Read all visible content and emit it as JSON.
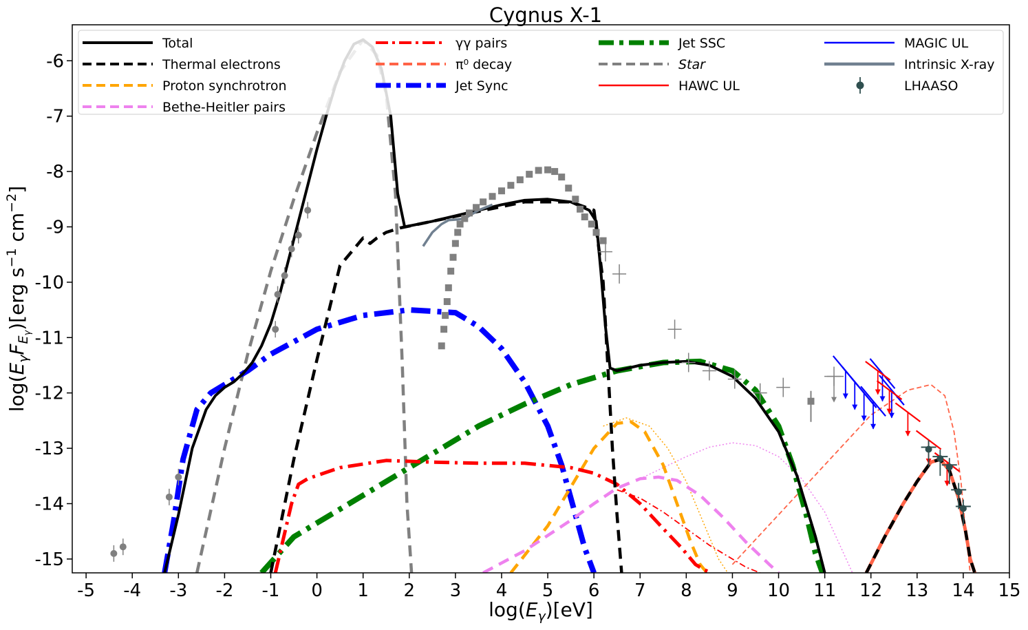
{
  "chart_data": {
    "type": "line",
    "title": "Cygnus X-1",
    "xlabel": "log(E_γ)[eV]",
    "ylabel": "log(E_γ F_E_γ)[erg s^-1 cm^-2]",
    "xlim": [
      -5.3,
      15
    ],
    "ylim": [
      -15.25,
      -5.35
    ],
    "xticks": [
      -5,
      -4,
      -3,
      -2,
      -1,
      0,
      1,
      2,
      3,
      4,
      5,
      6,
      7,
      8,
      9,
      10,
      11,
      12,
      13,
      14,
      15
    ],
    "xtick_labels": [
      "-5",
      "-4",
      "-3",
      "-2",
      "-1",
      "0",
      "1",
      "2",
      "3",
      "4",
      "5",
      "6",
      "7",
      "8",
      "9",
      "10",
      "11",
      "12",
      "13",
      "14",
      "15"
    ],
    "yticks": [
      -15,
      -14,
      -13,
      -12,
      -11,
      -10,
      -9,
      -8,
      -7,
      -6
    ],
    "ytick_labels": [
      "-15",
      "-14",
      "-13",
      "-12",
      "-11",
      "-10",
      "-9",
      "-8",
      "-7",
      "-6"
    ],
    "legend_position": "top",
    "legend": [
      {
        "key": "total",
        "label": "Total",
        "color": "#000000",
        "style": "solid"
      },
      {
        "key": "thermal",
        "label": "Thermal electrons",
        "color": "#000000",
        "style": "dashed"
      },
      {
        "key": "psync",
        "label": "Proton synchrotron",
        "color": "#FFA500",
        "style": "dashed"
      },
      {
        "key": "bh",
        "label": "Bethe-Heitler pairs",
        "color": "#EE82EE",
        "style": "dashed"
      },
      {
        "key": "gg",
        "label": "γγ pairs",
        "color": "#FF0000",
        "style": "dashdot"
      },
      {
        "key": "pi0",
        "label": "π⁰ decay",
        "color": "#FF6347",
        "style": "dashed"
      },
      {
        "key": "jetsync",
        "label": "Jet Sync",
        "color": "#0000FF",
        "style": "dashdotthick"
      },
      {
        "key": "jetssc",
        "label": "Jet SSC",
        "color": "#008000",
        "style": "dashdotthick"
      },
      {
        "key": "star",
        "label": "Star",
        "color": "#808080",
        "style": "dashed",
        "italic": true
      },
      {
        "key": "hawc",
        "label": "HAWC UL",
        "color": "#FF0000",
        "style": "solidthin"
      },
      {
        "key": "magic",
        "label": "MAGIC UL",
        "color": "#0000FF",
        "style": "solidthin"
      },
      {
        "key": "xray",
        "label": "Intrinsic X-ray",
        "color": "#708090",
        "style": "solid"
      },
      {
        "key": "lhaaso",
        "label": "LHAASO",
        "color": "#2F4F4F",
        "style": "marker"
      }
    ],
    "series": [
      {
        "name": "Total",
        "color": "#000000",
        "x": [
          -3.3,
          -3.0,
          -2.7,
          -2.4,
          -2.2,
          -2.0,
          -1.8,
          -1.6,
          -1.4,
          -1.2,
          -1.0,
          -0.8,
          -0.6,
          -0.4,
          -0.2,
          0.0,
          0.2,
          0.4,
          0.6,
          0.8,
          1.0,
          1.2,
          1.4,
          1.6,
          1.75,
          1.9,
          2.5,
          3.0,
          3.5,
          4.0,
          4.5,
          5.0,
          5.5,
          5.9,
          6.05,
          6.15,
          6.25,
          6.35,
          6.5,
          7.0,
          7.5,
          8.0,
          8.5,
          9.0,
          9.5,
          10.0,
          10.4,
          10.8,
          11.0
        ],
        "y": [
          -15.25,
          -14.2,
          -13.0,
          -12.3,
          -12.05,
          -11.9,
          -11.8,
          -11.65,
          -11.45,
          -11.15,
          -10.75,
          -10.2,
          -9.55,
          -8.9,
          -8.25,
          -7.6,
          -7.0,
          -6.45,
          -6.0,
          -5.7,
          -5.62,
          -5.75,
          -6.15,
          -7.0,
          -8.4,
          -9.0,
          -8.9,
          -8.8,
          -8.7,
          -8.6,
          -8.52,
          -8.5,
          -8.55,
          -8.7,
          -8.9,
          -9.8,
          -10.8,
          -11.55,
          -11.6,
          -11.5,
          -11.45,
          -11.43,
          -11.5,
          -11.7,
          -12.1,
          -12.7,
          -13.5,
          -14.6,
          -15.25
        ]
      },
      {
        "name": "Total (high energy)",
        "color": "#000000",
        "x": [
          11.9,
          12.3,
          12.7,
          13.0,
          13.3,
          13.5,
          13.7,
          13.9,
          14.05,
          14.15,
          14.25
        ],
        "y": [
          -15.25,
          -14.6,
          -14.0,
          -13.6,
          -13.25,
          -13.2,
          -13.4,
          -13.9,
          -14.5,
          -15.0,
          -15.25
        ]
      },
      {
        "name": "Thermal electrons",
        "color": "#000000",
        "x": [
          -1.0,
          -0.5,
          0.0,
          0.5,
          1.0,
          1.15,
          1.3,
          1.5,
          1.8,
          2.5,
          3.5,
          4.5,
          5.5,
          6.0,
          6.2,
          6.3,
          6.4,
          6.5,
          6.6
        ],
        "y": [
          -15.25,
          -13.2,
          -11.4,
          -9.7,
          -9.2,
          -9.3,
          -9.2,
          -9.1,
          -9.02,
          -8.9,
          -8.72,
          -8.55,
          -8.55,
          -8.7,
          -10.0,
          -11.5,
          -13.0,
          -14.2,
          -15.25
        ]
      },
      {
        "name": "Star",
        "color": "#808080",
        "x": [
          -2.6,
          -2.0,
          -1.5,
          -1.0,
          -0.5,
          0.0,
          0.5,
          1.0,
          1.3,
          1.5,
          1.7,
          1.85,
          1.95,
          2.05
        ],
        "y": [
          -15.25,
          -13.0,
          -11.3,
          -9.8,
          -8.5,
          -7.3,
          -6.2,
          -5.62,
          -5.9,
          -6.6,
          -8.4,
          -11.5,
          -14.0,
          -15.25
        ]
      },
      {
        "name": "Jet Sync",
        "color": "#0000FF",
        "x": [
          -3.3,
          -3.1,
          -2.9,
          -2.6,
          -2.3,
          -2.0,
          -1.5,
          -1.0,
          0.0,
          1.0,
          2.0,
          3.0,
          3.5,
          4.0,
          4.5,
          5.0,
          5.3,
          5.6,
          5.8,
          6.0
        ],
        "y": [
          -15.25,
          -14.3,
          -13.2,
          -12.3,
          -12.0,
          -11.85,
          -11.6,
          -11.3,
          -10.85,
          -10.6,
          -10.5,
          -10.55,
          -10.8,
          -11.2,
          -11.8,
          -12.6,
          -13.3,
          -14.2,
          -14.8,
          -15.25
        ]
      },
      {
        "name": "Jet SSC",
        "color": "#008000",
        "x": [
          -1.2,
          -0.5,
          0.5,
          1.5,
          2.5,
          3.5,
          4.5,
          5.5,
          6.5,
          7.5,
          8.3,
          9.0,
          9.5,
          10.0,
          10.3,
          10.6,
          10.8,
          10.95
        ],
        "y": [
          -15.25,
          -14.6,
          -14.1,
          -13.6,
          -13.1,
          -12.6,
          -12.2,
          -11.85,
          -11.6,
          -11.45,
          -11.43,
          -11.6,
          -11.95,
          -12.6,
          -13.3,
          -14.2,
          -14.9,
          -15.25
        ]
      },
      {
        "name": "Proton synchrotron",
        "color": "#FFA500",
        "x": [
          4.2,
          5.0,
          5.5,
          6.0,
          6.5,
          6.8,
          7.1,
          7.5,
          7.8,
          8.1,
          8.3,
          8.45
        ],
        "y": [
          -15.25,
          -14.4,
          -13.7,
          -13.0,
          -12.55,
          -12.52,
          -12.7,
          -13.3,
          -14.0,
          -14.7,
          -15.1,
          -15.25
        ]
      },
      {
        "name": "Proton synchrotron (thin)",
        "color": "#FFA500",
        "x": [
          6.2,
          6.7,
          7.2,
          7.6,
          8.0,
          8.4,
          8.7,
          8.9
        ],
        "y": [
          -12.6,
          -12.45,
          -12.6,
          -13.0,
          -13.6,
          -14.4,
          -15.0,
          -15.25
        ]
      },
      {
        "name": "Bethe-Heitler pairs",
        "color": "#EE82EE",
        "x": [
          3.6,
          4.5,
          5.5,
          6.0,
          6.5,
          7.0,
          7.4,
          7.8,
          8.3,
          8.8,
          9.3,
          9.8,
          10.0
        ],
        "y": [
          -15.25,
          -14.85,
          -14.3,
          -14.0,
          -13.72,
          -13.55,
          -13.52,
          -13.58,
          -13.85,
          -14.25,
          -14.7,
          -15.1,
          -15.25
        ]
      },
      {
        "name": "Bethe-Heitler pairs (thin)",
        "color": "#EE82EE",
        "x": [
          7.0,
          8.0,
          8.5,
          9.0,
          9.5,
          10.0,
          10.5,
          11.0,
          11.3,
          11.6
        ],
        "y": [
          -13.55,
          -13.15,
          -12.98,
          -12.9,
          -12.95,
          -13.15,
          -13.55,
          -14.15,
          -14.7,
          -15.25
        ]
      },
      {
        "name": "γγ pairs",
        "color": "#FF0000",
        "x": [
          -0.9,
          -0.55,
          -0.4,
          -0.2,
          0.5,
          1.5,
          2.5,
          3.5,
          4.5,
          5.5,
          6.0,
          6.5,
          7.0,
          7.5,
          7.9,
          8.2,
          8.4,
          8.55
        ],
        "y": [
          -15.25,
          -14.0,
          -13.65,
          -13.55,
          -13.35,
          -13.22,
          -13.25,
          -13.27,
          -13.27,
          -13.35,
          -13.45,
          -13.65,
          -14.0,
          -14.45,
          -14.8,
          -15.1,
          -15.2,
          -15.25
        ]
      },
      {
        "name": "γγ pairs (thin)",
        "color": "#FF0000",
        "x": [
          6.5,
          7.0,
          7.5,
          8.0,
          8.5,
          9.0,
          9.3,
          9.6
        ],
        "y": [
          -13.75,
          -13.9,
          -14.15,
          -14.45,
          -14.75,
          -15.0,
          -15.15,
          -15.25
        ]
      },
      {
        "name": "π⁰ decay",
        "color": "#FF6347",
        "x": [
          11.9,
          12.3,
          12.7,
          13.0,
          13.3,
          13.5,
          13.7,
          13.9,
          14.05,
          14.15,
          14.25
        ],
        "y": [
          -15.25,
          -14.6,
          -14.0,
          -13.6,
          -13.25,
          -13.2,
          -13.4,
          -13.9,
          -14.5,
          -15.0,
          -15.25
        ]
      },
      {
        "name": "π⁰ decay (thin)",
        "color": "#FF6347",
        "x": [
          9.0,
          10.0,
          11.0,
          12.0,
          12.8,
          13.3,
          13.6,
          13.8,
          13.95,
          14.05,
          14.15
        ],
        "y": [
          -15.1,
          -14.2,
          -13.3,
          -12.4,
          -11.95,
          -11.85,
          -12.05,
          -12.7,
          -13.6,
          -14.5,
          -15.25
        ]
      },
      {
        "name": "Intrinsic X-ray",
        "color": "#708090",
        "x": [
          2.3,
          2.5,
          2.7,
          2.85,
          3.0,
          3.2,
          3.5,
          3.8
        ],
        "y": [
          -9.35,
          -9.1,
          -8.95,
          -8.88,
          -8.87,
          -8.85,
          -8.7,
          -8.6
        ]
      }
    ],
    "grey_circles": {
      "color": "#808080",
      "points": [
        [
          -4.4,
          -14.9
        ],
        [
          -4.2,
          -14.78
        ],
        [
          -3.2,
          -13.88
        ],
        [
          -3.0,
          -13.52
        ],
        [
          -0.9,
          -10.85
        ],
        [
          -0.85,
          -10.22
        ],
        [
          -0.7,
          -9.88
        ],
        [
          -0.55,
          -9.4
        ],
        [
          -0.4,
          -9.15
        ],
        [
          -0.2,
          -8.7
        ]
      ]
    },
    "grey_squares": {
      "color": "#808080",
      "points": [
        [
          2.7,
          -11.15
        ],
        [
          2.75,
          -10.85
        ],
        [
          2.78,
          -10.6
        ],
        [
          2.82,
          -10.35
        ],
        [
          2.85,
          -10.1
        ],
        [
          2.9,
          -9.8
        ],
        [
          2.95,
          -9.55
        ],
        [
          3.0,
          -9.3
        ],
        [
          3.05,
          -9.1
        ],
        [
          3.1,
          -8.95
        ],
        [
          3.2,
          -8.85
        ],
        [
          3.3,
          -8.75
        ],
        [
          3.45,
          -8.65
        ],
        [
          3.6,
          -8.55
        ],
        [
          3.8,
          -8.45
        ],
        [
          4.0,
          -8.35
        ],
        [
          4.2,
          -8.25
        ],
        [
          4.4,
          -8.15
        ],
        [
          4.6,
          -8.05
        ],
        [
          4.8,
          -7.98
        ],
        [
          5.0,
          -7.97
        ],
        [
          5.15,
          -8.0
        ],
        [
          5.3,
          -8.1
        ],
        [
          5.45,
          -8.3
        ],
        [
          5.6,
          -8.5
        ],
        [
          5.7,
          -8.68
        ],
        [
          5.8,
          -8.82
        ],
        [
          5.95,
          -8.95
        ],
        [
          6.05,
          -9.1
        ],
        [
          6.2,
          -9.25
        ],
        [
          10.7,
          -12.15
        ]
      ]
    },
    "grey_crosses": {
      "color": "#808080",
      "points": [
        [
          6.25,
          -9.45
        ],
        [
          6.55,
          -9.85
        ],
        [
          7.75,
          -10.85
        ],
        [
          8.05,
          -11.45
        ],
        [
          8.5,
          -11.6
        ],
        [
          9.05,
          -11.75
        ],
        [
          9.6,
          -12.0
        ],
        [
          10.1,
          -11.9
        ],
        [
          11.2,
          -11.7
        ]
      ]
    },
    "magic_ul": {
      "color": "#0000FF",
      "points": [
        [
          11.45,
          -11.6
        ],
        [
          11.65,
          -11.8
        ],
        [
          11.85,
          -12.0
        ],
        [
          12.05,
          -12.15
        ],
        [
          12.25,
          -11.65
        ],
        [
          12.45,
          -11.95
        ]
      ]
    },
    "hawc_ul": {
      "color": "#FF0000",
      "points": [
        [
          12.15,
          -11.6
        ],
        [
          12.4,
          -11.95
        ],
        [
          12.8,
          -12.35
        ],
        [
          13.25,
          -12.85
        ],
        [
          13.65,
          -13.25
        ]
      ]
    },
    "lhaaso": {
      "color": "#2F4F4F",
      "points": [
        [
          13.25,
          -12.98
        ],
        [
          13.5,
          -13.15
        ],
        [
          13.7,
          -13.3
        ],
        [
          13.9,
          -13.75
        ],
        [
          14.0,
          -14.05
        ]
      ]
    }
  }
}
